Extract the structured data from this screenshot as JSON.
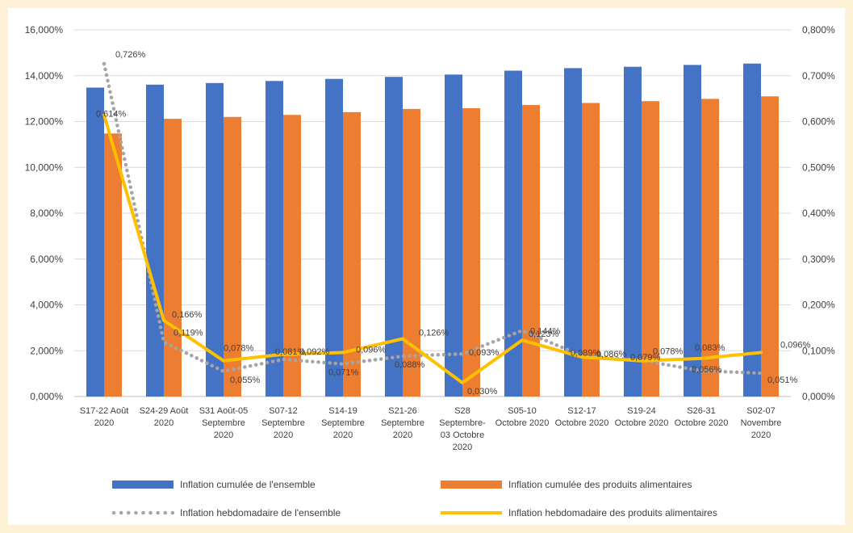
{
  "chart_data": {
    "type": "bar",
    "categories": [
      [
        "S17-22 Août",
        "2020"
      ],
      [
        "S24-29 Août",
        "2020"
      ],
      [
        "S31 Août-05",
        "Septembre",
        "2020"
      ],
      [
        "S07-12",
        "Septembre",
        "2020"
      ],
      [
        "S14-19",
        "Septembre",
        "2020"
      ],
      [
        "S21-26",
        "Septembre",
        "2020"
      ],
      [
        "S28",
        "Septembre-",
        "03 Octobre",
        "2020"
      ],
      [
        "S05-10",
        "Octobre 2020"
      ],
      [
        "S12-17",
        "Octobre 2020"
      ],
      [
        "S19-24",
        "Octobre 2020"
      ],
      [
        "S26-31",
        "Octobre 2020"
      ],
      [
        "S02-07",
        "Novembre",
        "2020"
      ]
    ],
    "y_left": {
      "min": 0,
      "max": 16,
      "step": 2,
      "tick_labels": [
        "0,000%",
        "2,000%",
        "4,000%",
        "6,000%",
        "8,000%",
        "10,000%",
        "12,000%",
        "14,000%",
        "16,000%"
      ]
    },
    "y_right": {
      "min": 0,
      "max": 0.8,
      "step": 0.1,
      "tick_labels": [
        "0,000%",
        "0,100%",
        "0,200%",
        "0,300%",
        "0,400%",
        "0,500%",
        "0,600%",
        "0,700%",
        "0,800%"
      ]
    },
    "grid": true,
    "legend_position": "bottom",
    "series": [
      {
        "name": "Inflation cumulée de l'ensemble",
        "kind": "bar",
        "axis": "left",
        "color": "#4472c4",
        "values": [
          13.48,
          13.61,
          13.68,
          13.77,
          13.86,
          13.95,
          14.05,
          14.22,
          14.33,
          14.39,
          14.47,
          14.53
        ]
      },
      {
        "name": "Inflation cumulée des produits alimentaires",
        "kind": "bar",
        "axis": "left",
        "color": "#ed7d31",
        "values": [
          11.48,
          12.12,
          12.2,
          12.29,
          12.41,
          12.55,
          12.58,
          12.72,
          12.81,
          12.89,
          12.99,
          13.1
        ]
      },
      {
        "name": "Inflation hebdomadaire de l'ensemble",
        "kind": "line",
        "style": "dotted",
        "axis": "right",
        "color": "#a5a5a5",
        "values": [
          0.726,
          0.119,
          0.055,
          0.081,
          0.071,
          0.088,
          0.093,
          0.144,
          0.089,
          0.079,
          0.056,
          0.051
        ],
        "labels": [
          "0,726%",
          "0,119%",
          "0,055%",
          "0,081%",
          "0,071%",
          "0,088%",
          "0,093%",
          "0,144%",
          "0,089%",
          "0,079%",
          "0,056%",
          "0,051%"
        ]
      },
      {
        "name": "Inflation hebdomadaire des produits alimentaires",
        "kind": "line",
        "style": "solid",
        "axis": "right",
        "color": "#ffc000",
        "values": [
          0.614,
          0.166,
          0.078,
          0.092,
          0.096,
          0.126,
          0.03,
          0.123,
          0.086,
          0.078,
          0.083,
          0.096
        ],
        "labels": [
          "0,614%",
          "0,166%",
          "0,078%",
          "0,092%",
          "0,096%",
          "0,126%",
          "0,030%",
          "0,123%",
          "0,086%",
          "0,078%",
          "0,083%",
          "0,096%"
        ]
      }
    ]
  }
}
